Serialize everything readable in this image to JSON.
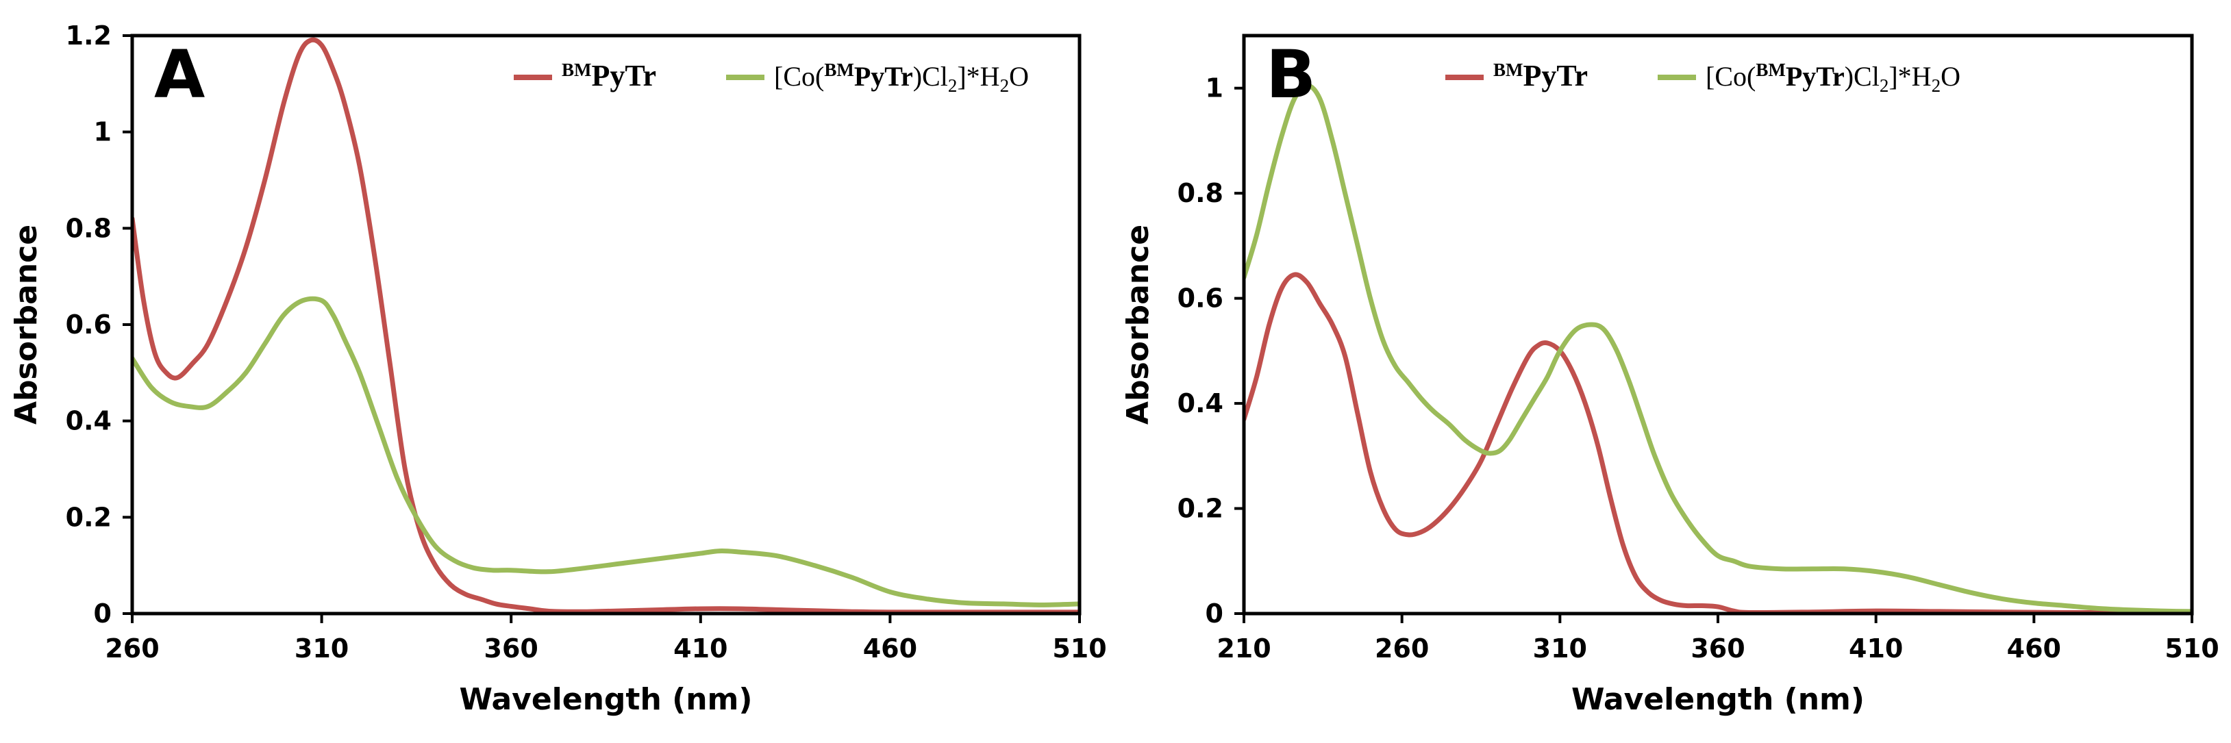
{
  "chart_data": [
    {
      "type": "line",
      "panel_label": "A",
      "xlabel": "Wavelength (nm)",
      "ylabel": "Absorbance",
      "xlim": [
        260,
        510
      ],
      "ylim": [
        0,
        1.2
      ],
      "xticks": [
        "260",
        "310",
        "360",
        "410",
        "460",
        "510"
      ],
      "yticks": [
        "0",
        "0.2",
        "0.4",
        "0.6",
        "0.8",
        "1",
        "1.2"
      ],
      "legend_position": "top-right",
      "series": [
        {
          "name": "BMPyTr",
          "label_sup": "BM",
          "label_main": "PyTr",
          "color": "#C0504D",
          "x": [
            260,
            263,
            266,
            269,
            272,
            276,
            280,
            285,
            290,
            295,
            300,
            304,
            307,
            310,
            313,
            316,
            320,
            324,
            328,
            332,
            336,
            340,
            344,
            348,
            352,
            356,
            360,
            365,
            370,
            380,
            400,
            410,
            420,
            430,
            440,
            450,
            460,
            480,
            500,
            510
          ],
          "y": [
            0.82,
            0.65,
            0.54,
            0.5,
            0.49,
            0.52,
            0.56,
            0.65,
            0.76,
            0.9,
            1.06,
            1.16,
            1.19,
            1.18,
            1.13,
            1.06,
            0.93,
            0.74,
            0.52,
            0.3,
            0.17,
            0.1,
            0.06,
            0.04,
            0.03,
            0.02,
            0.015,
            0.01,
            0.005,
            0.004,
            0.008,
            0.01,
            0.01,
            0.008,
            0.006,
            0.004,
            0.003,
            0.003,
            0.003,
            0.003
          ]
        },
        {
          "name": "[Co(BMPyTr)Cl2]*H2O",
          "label_pre": "[Co(",
          "label_sup": "BM",
          "label_main": "PyTr",
          "label_post": ")Cl",
          "label_sub": "2",
          "label_post2": "]*H",
          "label_sub2": "2",
          "label_post3": "O",
          "color": "#9BBB59",
          "x": [
            260,
            265,
            270,
            275,
            280,
            285,
            290,
            295,
            300,
            305,
            310,
            313,
            316,
            320,
            325,
            330,
            335,
            340,
            345,
            350,
            355,
            360,
            370,
            380,
            390,
            400,
            410,
            415,
            420,
            430,
            440,
            450,
            460,
            470,
            480,
            490,
            500,
            510
          ],
          "y": [
            0.53,
            0.47,
            0.44,
            0.43,
            0.43,
            0.46,
            0.5,
            0.56,
            0.62,
            0.65,
            0.65,
            0.62,
            0.57,
            0.5,
            0.39,
            0.28,
            0.2,
            0.14,
            0.11,
            0.095,
            0.09,
            0.09,
            0.087,
            0.095,
            0.105,
            0.115,
            0.125,
            0.13,
            0.128,
            0.12,
            0.1,
            0.075,
            0.045,
            0.03,
            0.022,
            0.02,
            0.018,
            0.02
          ]
        }
      ]
    },
    {
      "type": "line",
      "panel_label": "B",
      "xlabel": "Wavelength (nm)",
      "ylabel": "Absorbance",
      "xlim": [
        210,
        510
      ],
      "ylim": [
        0,
        1.1
      ],
      "xticks": [
        "210",
        "260",
        "310",
        "360",
        "410",
        "460",
        "510"
      ],
      "yticks": [
        "0",
        "0.2",
        "0.4",
        "0.6",
        "0.8",
        "1"
      ],
      "legend_position": "top-right",
      "series": [
        {
          "name": "BMPyTr",
          "label_sup": "BM",
          "label_main": "PyTr",
          "color": "#C0504D",
          "x": [
            210,
            214,
            218,
            222,
            226,
            230,
            234,
            238,
            242,
            246,
            250,
            254,
            258,
            262,
            266,
            270,
            275,
            280,
            285,
            290,
            295,
            300,
            303,
            306,
            310,
            314,
            318,
            322,
            326,
            330,
            334,
            338,
            342,
            346,
            350,
            355,
            360,
            365,
            370,
            390,
            410,
            430,
            450,
            470,
            490,
            510
          ],
          "y": [
            0.37,
            0.45,
            0.55,
            0.62,
            0.645,
            0.63,
            0.59,
            0.55,
            0.49,
            0.38,
            0.27,
            0.2,
            0.16,
            0.15,
            0.155,
            0.17,
            0.2,
            0.24,
            0.29,
            0.36,
            0.43,
            0.49,
            0.51,
            0.515,
            0.5,
            0.46,
            0.4,
            0.32,
            0.22,
            0.13,
            0.07,
            0.04,
            0.025,
            0.018,
            0.015,
            0.015,
            0.013,
            0.005,
            0.002,
            0.003,
            0.005,
            0.004,
            0.003,
            0.002,
            0.002,
            0.002
          ]
        },
        {
          "name": "[Co(BMPyTr)Cl2]*H2O",
          "label_pre": "[Co(",
          "label_sup": "BM",
          "label_main": "PyTr",
          "label_post": ")Cl",
          "label_sub": "2",
          "label_post2": "]*H",
          "label_sub2": "2",
          "label_post3": "O",
          "color": "#9BBB59",
          "x": [
            210,
            214,
            218,
            222,
            226,
            230,
            234,
            238,
            242,
            246,
            250,
            254,
            258,
            262,
            266,
            270,
            275,
            280,
            285,
            288,
            291,
            294,
            298,
            302,
            306,
            310,
            315,
            320,
            324,
            328,
            332,
            336,
            340,
            345,
            350,
            355,
            360,
            365,
            370,
            380,
            390,
            400,
            410,
            420,
            430,
            440,
            450,
            460,
            470,
            480,
            490,
            500,
            510
          ],
          "y": [
            0.64,
            0.72,
            0.82,
            0.91,
            0.98,
            1.005,
            0.98,
            0.9,
            0.8,
            0.7,
            0.6,
            0.52,
            0.47,
            0.44,
            0.41,
            0.385,
            0.36,
            0.33,
            0.31,
            0.305,
            0.31,
            0.33,
            0.37,
            0.41,
            0.45,
            0.5,
            0.54,
            0.55,
            0.54,
            0.5,
            0.44,
            0.37,
            0.3,
            0.23,
            0.18,
            0.14,
            0.11,
            0.1,
            0.09,
            0.085,
            0.085,
            0.085,
            0.08,
            0.07,
            0.055,
            0.04,
            0.028,
            0.02,
            0.015,
            0.01,
            0.007,
            0.005,
            0.004
          ]
        }
      ]
    }
  ]
}
